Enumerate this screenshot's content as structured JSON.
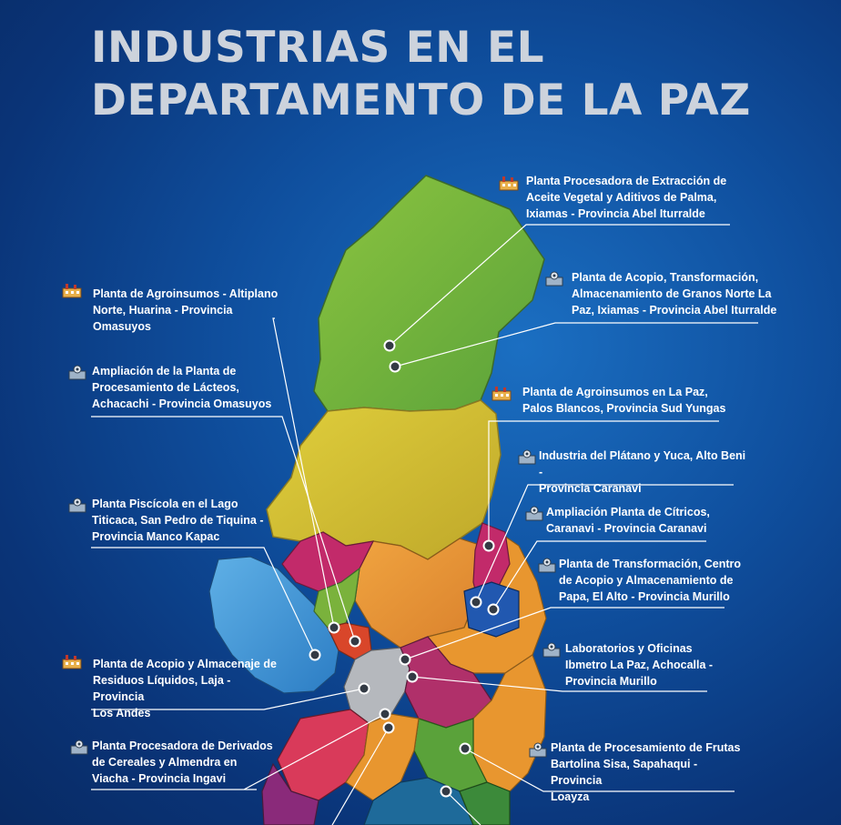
{
  "title": {
    "line1": "INDUSTRIAS EN EL",
    "line2": "DEPARTAMENTO DE LA PAZ"
  },
  "colors": {
    "background": "#0f4f9e",
    "title": "#cdd3dc",
    "north_region": "#7fba3c",
    "label_text": "#ffffff"
  },
  "icons": [
    "factory-icon",
    "gear-building-icon"
  ],
  "labels": [
    {
      "lines": [
        "Planta Procesadora de Extracción de",
        "Aceite Vegetal y Aditivos de Palma,",
        "Ixiamas - Provincia Abel Iturralde"
      ],
      "icon": "factory-icon"
    },
    {
      "lines": [
        "Planta de Acopio, Transformación,",
        "Almacenamiento de Granos Norte La",
        "Paz, Ixiamas - Provincia Abel Iturralde"
      ],
      "icon": "gear-building-icon"
    },
    {
      "lines": [
        "Planta de Agroinsumos en La Paz,",
        "Palos Blancos, Provincia Sud Yungas"
      ],
      "icon": "factory-icon"
    },
    {
      "lines": [
        "Industria del Plátano y Yuca, Alto Beni -",
        "Provincia Caranavi"
      ],
      "icon": "gear-building-icon"
    },
    {
      "lines": [
        "Ampliación Planta de Cítricos,",
        "Caranavi - Provincia Caranavi"
      ],
      "icon": "gear-building-icon"
    },
    {
      "lines": [
        "Planta de Transformación,  Centro",
        "de Acopio y Almacenamiento de",
        "Papa, El Alto - Provincia Murillo"
      ],
      "icon": "gear-building-icon"
    },
    {
      "lines": [
        "Laboratorios y Oficinas",
        "Ibmetro La Paz, Achocalla -",
        "Provincia Murillo"
      ],
      "icon": "gear-building-icon"
    },
    {
      "lines": [
        "Planta de Procesamiento de Frutas",
        "Bartolina Sisa, Sapahaqui - Provincia",
        "Loayza"
      ],
      "icon": "gear-building-icon"
    },
    {
      "lines": [
        "Planta de Agroinsumos - Altiplano",
        "Norte, Huarina - Provincia Omasuyos"
      ],
      "icon": "factory-icon"
    },
    {
      "lines": [
        "Ampliación de la Planta de",
        "Procesamiento de Lácteos,",
        "Achacachi - Provincia Omasuyos"
      ],
      "icon": "gear-building-icon"
    },
    {
      "lines": [
        "Planta Piscícola en el Lago",
        "Titicaca, San Pedro de Tiquina -",
        "Provincia Manco Kapac"
      ],
      "icon": "gear-building-icon"
    },
    {
      "lines": [
        "Planta de Acopio y Almacenaje de",
        "Residuos Líquidos, Laja - Provincia",
        "Los Andes"
      ],
      "icon": "factory-icon"
    },
    {
      "lines": [
        "Planta Procesadora de Derivados",
        "de Cereales y Almendra en",
        "Viacha - Provincia Ingavi"
      ],
      "icon": "gear-building-icon"
    }
  ]
}
